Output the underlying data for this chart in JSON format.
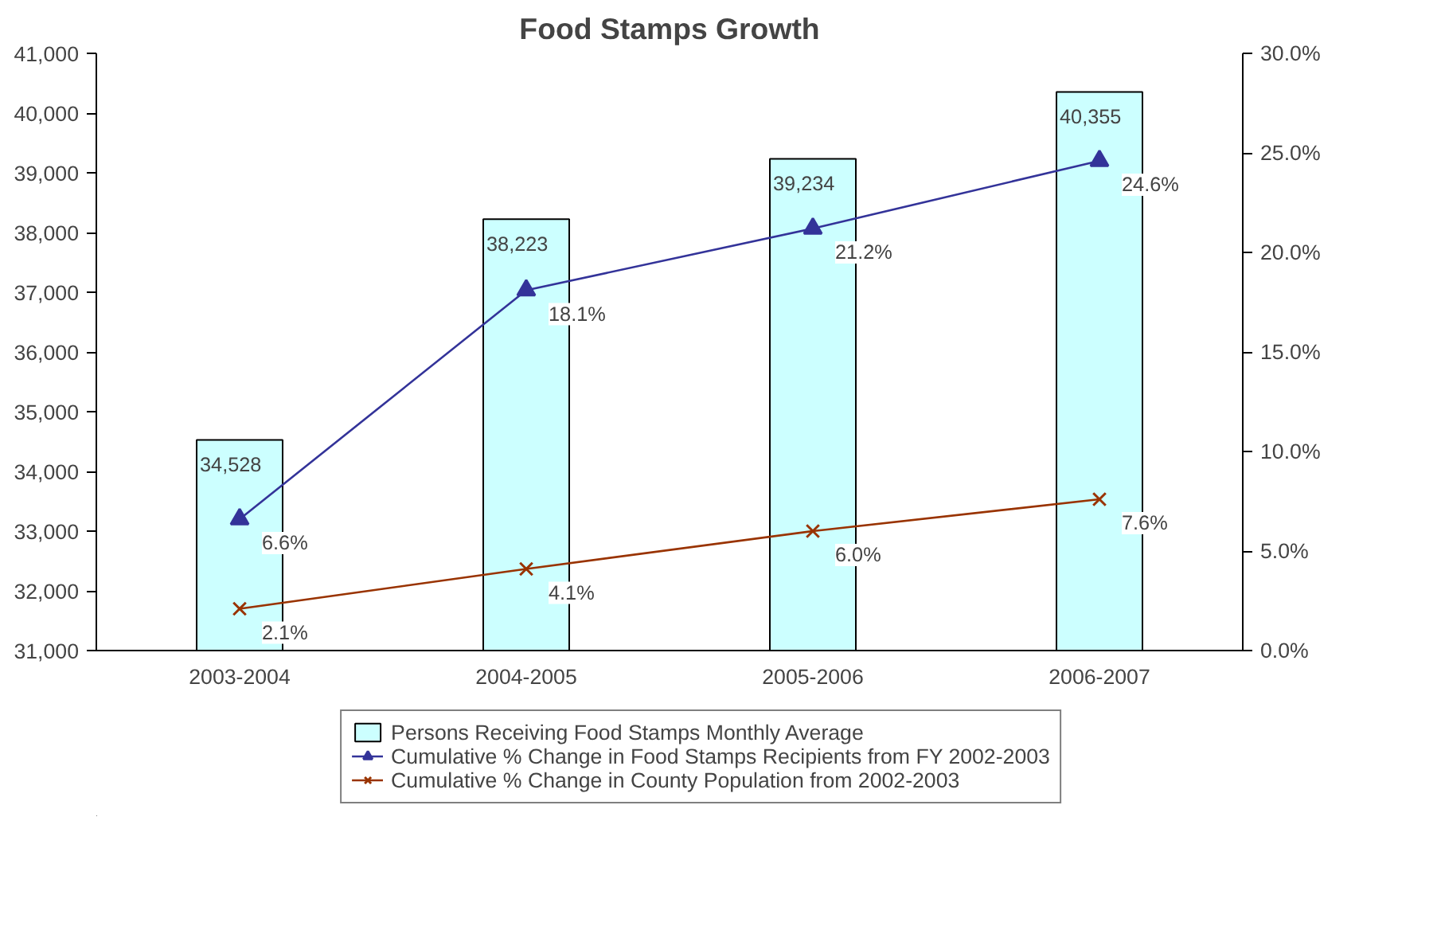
{
  "chart_data": {
    "type": "bar",
    "title": "Food Stamps Growth",
    "categories": [
      "2003-2004",
      "2004-2005",
      "2005-2006",
      "2006-2007"
    ],
    "series": [
      {
        "name": "Persons Receiving Food Stamps Monthly Average",
        "color": "#ccffff",
        "values": [
          34528,
          38223,
          39234,
          40355
        ],
        "value_labels": [
          "34,528",
          "38,223",
          "39,234",
          "40,355"
        ]
      },
      {
        "name": "Cumulative % Change in Food Stamps Recipients from FY 2002-2003",
        "type": "line",
        "axis": "y2",
        "color": "#333399",
        "marker": "triangle",
        "values": [
          6.6,
          18.1,
          21.2,
          24.6
        ],
        "value_labels": [
          "6.6%",
          "18.1%",
          "21.2%",
          "24.6%"
        ]
      },
      {
        "name": "Cumulative % Change in County Population from 2002-2003",
        "type": "line",
        "axis": "y2",
        "color": "#993300",
        "marker": "cross",
        "values": [
          2.1,
          4.1,
          6.0,
          7.6
        ],
        "value_labels": [
          "2.1%",
          "4.1%",
          "6.0%",
          "7.6%"
        ]
      }
    ],
    "ylim": [
      31000,
      41000
    ],
    "yticks": [
      {
        "value": 31000,
        "label": "31,000"
      },
      {
        "value": 32000,
        "label": "32,000"
      },
      {
        "value": 33000,
        "label": "33,000"
      },
      {
        "value": 34000,
        "label": "34,000"
      },
      {
        "value": 35000,
        "label": "35,000"
      },
      {
        "value": 36000,
        "label": "36,000"
      },
      {
        "value": 37000,
        "label": "37,000"
      },
      {
        "value": 38000,
        "label": "38,000"
      },
      {
        "value": 39000,
        "label": "39,000"
      },
      {
        "value": 40000,
        "label": "40,000"
      },
      {
        "value": 41000,
        "label": "41,000"
      }
    ],
    "y2lim": [
      0,
      30
    ],
    "y2ticks": [
      {
        "value": 0,
        "label": "0.0%"
      },
      {
        "value": 5,
        "label": "5.0%"
      },
      {
        "value": 10,
        "label": "10.0%"
      },
      {
        "value": 15,
        "label": "15.0%"
      },
      {
        "value": 20,
        "label": "20.0%"
      },
      {
        "value": 25,
        "label": "25.0%"
      },
      {
        "value": 30,
        "label": "30.0%"
      }
    ],
    "grid": false,
    "legend": "bottom",
    "line_style": "solid"
  }
}
